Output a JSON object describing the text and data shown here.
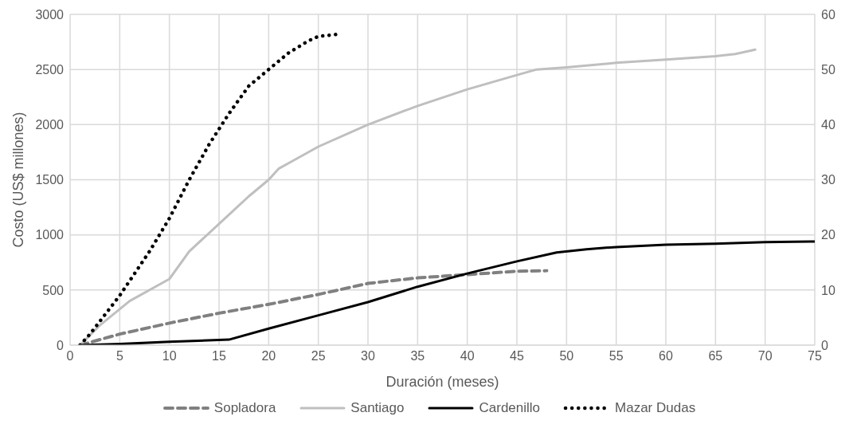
{
  "chart_data": {
    "type": "line",
    "xlabel": "Duración (meses)",
    "ylabel": "Costo (US$ millones)",
    "xlim": [
      0,
      75
    ],
    "xticks": [
      0,
      5,
      10,
      15,
      20,
      25,
      30,
      35,
      40,
      45,
      50,
      55,
      60,
      65,
      70,
      75
    ],
    "ylim": [
      0,
      3000
    ],
    "yticks": [
      0,
      500,
      1000,
      1500,
      2000,
      2500,
      3000
    ],
    "y2lim": [
      0,
      60
    ],
    "y2ticks": [
      0,
      10,
      20,
      30,
      40,
      50,
      60
    ],
    "grid": true,
    "legend": "bottom",
    "marker": "none",
    "series": [
      {
        "name": "Sopladora",
        "color": "#808080",
        "line_style": "dashed",
        "x": [
          1,
          5,
          10,
          15,
          20,
          25,
          30,
          35,
          40,
          45,
          48
        ],
        "values": [
          0,
          100,
          200,
          290,
          370,
          460,
          560,
          610,
          640,
          670,
          675
        ]
      },
      {
        "name": "Santiago",
        "color": "#bfbfbf",
        "line_style": "solid",
        "x": [
          1,
          3,
          6,
          10,
          12,
          15,
          18,
          20,
          21,
          22,
          25,
          30,
          35,
          40,
          45,
          47,
          50,
          55,
          60,
          65,
          67,
          69
        ],
        "values": [
          0,
          180,
          400,
          600,
          850,
          1100,
          1350,
          1500,
          1600,
          1650,
          1800,
          2000,
          2170,
          2320,
          2450,
          2500,
          2520,
          2560,
          2590,
          2620,
          2640,
          2680
        ]
      },
      {
        "name": "Cardenillo",
        "color": "#000000",
        "line_style": "solid",
        "x": [
          1,
          5,
          10,
          16,
          20,
          25,
          30,
          35,
          40,
          45,
          49,
          52,
          55,
          60,
          65,
          70,
          75
        ],
        "values": [
          0,
          10,
          30,
          50,
          150,
          270,
          390,
          530,
          650,
          760,
          840,
          870,
          890,
          910,
          920,
          935,
          940
        ]
      },
      {
        "name": "Mazar Dudas",
        "color": "#000000",
        "line_style": "dotted",
        "x": [
          1,
          2,
          5,
          8,
          10,
          12,
          14,
          16,
          18,
          20,
          22,
          24,
          25,
          27
        ],
        "values": [
          0,
          100,
          450,
          850,
          1150,
          1500,
          1820,
          2100,
          2350,
          2500,
          2650,
          2760,
          2800,
          2820
        ]
      }
    ]
  }
}
